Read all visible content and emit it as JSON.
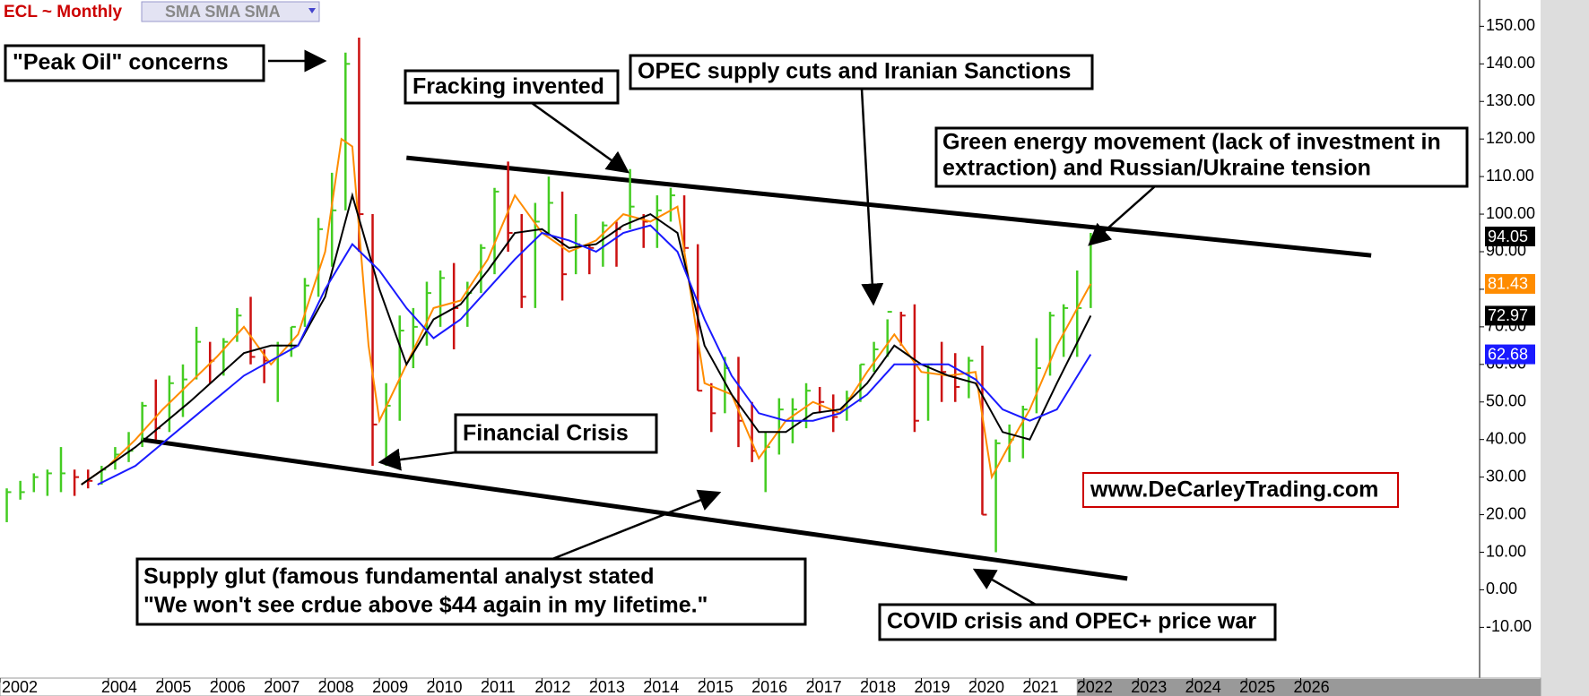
{
  "chart_data": {
    "type": "ohlc",
    "title": "ECL ~ Monthly",
    "indicator_label": "SMA SMA SMA",
    "xlim": [
      2002,
      2029.3
    ],
    "ylim": [
      -23.5,
      157
    ],
    "xticks": [
      2002,
      2004,
      2005,
      2006,
      2007,
      2008,
      2009,
      2010,
      2011,
      2012,
      2013,
      2014,
      2015,
      2016,
      2017,
      2018,
      2019,
      2020,
      2021,
      2022,
      2023,
      2024,
      2025,
      2026
    ],
    "yticks": [
      {
        "value": -10,
        "label": "-10.00"
      },
      {
        "value": 0,
        "label": "0.00"
      },
      {
        "value": 10,
        "label": "10.00"
      },
      {
        "value": 20,
        "label": "20.00"
      },
      {
        "value": 30,
        "label": "30.00"
      },
      {
        "value": 40,
        "label": "40.00"
      },
      {
        "value": 50,
        "label": "50.00"
      },
      {
        "value": 60,
        "label": "60.00"
      },
      {
        "value": 70,
        "label": "70.00"
      },
      {
        "value": 80,
        "label": "80.00"
      },
      {
        "value": 90,
        "label": "90.00"
      },
      {
        "value": 100,
        "label": "100.00"
      },
      {
        "value": 110,
        "label": "110.00"
      },
      {
        "value": 120,
        "label": "120.00"
      },
      {
        "value": 130,
        "label": "130.00"
      },
      {
        "value": 140,
        "label": "140.00"
      },
      {
        "value": 150,
        "label": "150.00"
      }
    ],
    "up_color": "#44cc22",
    "down_color": "#cc1111",
    "price": {
      "x": [
        2002.125,
        2002.375,
        2002.625,
        2002.875,
        2003.125,
        2003.375,
        2003.625,
        2003.875,
        2004.125,
        2004.375,
        2004.625,
        2004.875,
        2005.125,
        2005.375,
        2005.625,
        2005.875,
        2006.125,
        2006.375,
        2006.625,
        2006.875,
        2007.125,
        2007.375,
        2007.625,
        2007.875,
        2008.125,
        2008.375,
        2008.625,
        2008.875,
        2009.125,
        2009.375,
        2009.625,
        2009.875,
        2010.125,
        2010.375,
        2010.625,
        2010.875,
        2011.125,
        2011.375,
        2011.625,
        2011.875,
        2012.125,
        2012.375,
        2012.625,
        2012.875,
        2013.125,
        2013.375,
        2013.625,
        2013.875,
        2014.125,
        2014.375,
        2014.625,
        2014.875,
        2015.125,
        2015.375,
        2015.625,
        2015.875,
        2016.125,
        2016.375,
        2016.625,
        2016.875,
        2017.125,
        2017.375,
        2017.625,
        2017.875,
        2018.125,
        2018.375,
        2018.625,
        2018.875,
        2019.125,
        2019.375,
        2019.625,
        2019.875,
        2020.125,
        2020.375,
        2020.625,
        2020.875,
        2021.125,
        2021.375,
        2021.625,
        2021.875,
        2022.125
      ],
      "high": [
        27,
        29,
        31,
        32,
        38,
        32,
        32,
        33,
        38,
        42,
        50,
        56,
        57,
        60,
        70,
        66,
        67,
        75,
        78,
        64,
        66,
        70,
        83,
        99,
        111,
        143,
        147,
        100,
        55,
        73,
        75,
        82,
        85,
        87,
        82,
        92,
        107,
        114,
        100,
        103,
        110,
        106,
        100,
        92,
        98,
        98,
        112,
        100,
        105,
        107,
        105,
        92,
        55,
        62,
        62,
        50,
        42,
        51,
        51,
        55,
        54,
        52,
        53,
        60,
        66,
        72,
        74,
        76,
        60,
        66,
        63,
        62,
        65,
        40,
        44,
        49,
        67,
        74,
        76,
        85,
        95
      ],
      "low": [
        18,
        24,
        26,
        25,
        26,
        25,
        27,
        28,
        32,
        34,
        38,
        40,
        42,
        46,
        56,
        55,
        57,
        66,
        60,
        55,
        50,
        62,
        70,
        78,
        86,
        101,
        90,
        33,
        33,
        45,
        59,
        65,
        70,
        64,
        70,
        79,
        84,
        90,
        75,
        75,
        95,
        77,
        84,
        84,
        86,
        86,
        96,
        91,
        91,
        98,
        90,
        53,
        42,
        47,
        38,
        34,
        26,
        36,
        39,
        43,
        47,
        42,
        45,
        50,
        58,
        62,
        65,
        42,
        45,
        50,
        50,
        51,
        20,
        10,
        34,
        35,
        47,
        57,
        62,
        62,
        75
      ],
      "close": [
        26,
        26,
        30,
        31,
        31,
        30,
        29,
        32,
        36,
        37,
        49,
        43,
        55,
        56,
        66,
        61,
        66,
        73,
        62,
        61,
        65,
        70,
        81,
        96,
        101,
        140,
        100,
        44,
        49,
        69,
        70,
        79,
        83,
        75,
        79,
        91,
        106,
        95,
        78,
        98,
        103,
        84,
        92,
        91,
        97,
        96,
        102,
        98,
        101,
        105,
        91,
        53,
        47,
        59,
        45,
        37,
        38,
        48,
        48,
        53,
        50,
        46,
        51,
        60,
        64,
        74,
        73,
        45,
        60,
        58,
        54,
        61,
        20,
        39,
        40,
        48,
        59,
        73,
        75,
        75,
        94.05
      ]
    },
    "series": [
      {
        "color": "#ff8c00",
        "x": [
          2003.5,
          2004,
          2004.5,
          2005,
          2005.5,
          2006,
          2006.5,
          2007,
          2007.5,
          2008,
          2008.3,
          2008.5,
          2008.8,
          2009,
          2009.5,
          2010,
          2010.5,
          2011,
          2011.5,
          2012,
          2012.5,
          2013,
          2013.5,
          2014,
          2014.5,
          2015,
          2015.5,
          2016,
          2016.5,
          2017,
          2017.5,
          2018,
          2018.5,
          2019,
          2019.5,
          2020,
          2020.3,
          2020.6,
          2021,
          2021.5,
          2022.125
        ],
        "values": [
          28,
          33,
          40,
          48,
          55,
          62,
          70,
          60,
          68,
          90,
          120,
          118,
          65,
          45,
          60,
          75,
          77,
          88,
          105,
          95,
          90,
          93,
          100,
          98,
          102,
          55,
          52,
          35,
          45,
          50,
          47,
          58,
          68,
          58,
          57,
          58,
          30,
          38,
          48,
          65,
          81.43
        ]
      },
      {
        "color": "#000000",
        "x": [
          2003.5,
          2004.5,
          2005.5,
          2006.5,
          2007,
          2007.5,
          2008,
          2008.5,
          2009,
          2009.5,
          2010,
          2010.5,
          2011,
          2011.5,
          2012,
          2012.5,
          2013,
          2013.5,
          2014,
          2014.5,
          2015,
          2015.5,
          2016,
          2016.5,
          2017,
          2017.5,
          2018,
          2018.5,
          2019,
          2019.5,
          2020,
          2020.5,
          2021,
          2021.5,
          2022.125
        ],
        "values": [
          28,
          38,
          50,
          63,
          65,
          65,
          78,
          105,
          80,
          60,
          72,
          76,
          85,
          95,
          96,
          91,
          92,
          97,
          100,
          95,
          65,
          52,
          42,
          42,
          47,
          48,
          55,
          65,
          60,
          57,
          55,
          42,
          40,
          55,
          72.97
        ]
      },
      {
        "color": "#1a1aff",
        "x": [
          2003.8,
          2004.5,
          2005.5,
          2006.5,
          2007.5,
          2008,
          2008.5,
          2009,
          2009.5,
          2010,
          2010.5,
          2011,
          2011.5,
          2012,
          2012.5,
          2013,
          2013.5,
          2014,
          2014.5,
          2015,
          2015.5,
          2016,
          2016.5,
          2017,
          2017.5,
          2018,
          2018.5,
          2019,
          2019.5,
          2020,
          2020.5,
          2021,
          2021.5,
          2022.125
        ],
        "values": [
          28,
          33,
          45,
          57,
          65,
          80,
          92,
          85,
          75,
          67,
          72,
          80,
          88,
          95,
          93,
          90,
          95,
          97,
          90,
          72,
          57,
          47,
          45,
          45,
          47,
          52,
          60,
          60,
          60,
          56,
          48,
          45,
          48,
          62.68
        ]
      }
    ],
    "trendlines": [
      {
        "x": [
          2009.5,
          2027.3
        ],
        "y": [
          115,
          89
        ]
      },
      {
        "x": [
          2004.6,
          2022.8
        ],
        "y": [
          40,
          3
        ]
      }
    ],
    "annotations": {
      "peak_oil": "\"Peak Oil\" concerns",
      "fracking": "Fracking invented",
      "opec": "OPEC supply cuts and Iranian Sanctions",
      "green": [
        "Green energy movement (lack of investment in",
        " extraction) and Russian/Ukraine tension"
      ],
      "financial": "Financial Crisis",
      "glut": [
        "Supply glut (famous fundamental analyst stated",
        "\"We won't see crdue above $44 again in my lifetime.\""
      ],
      "covid": "COVID crisis and OPEC+ price war",
      "website": "www.DeCarleyTrading.com"
    }
  }
}
